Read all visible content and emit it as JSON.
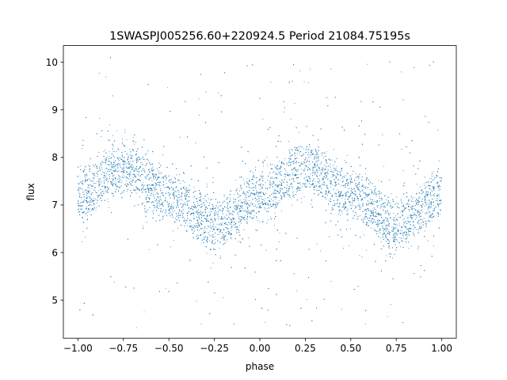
{
  "chart_data": {
    "type": "scatter",
    "title": "1SWASPJ005256.60+220924.5 Period 21084.75195s",
    "xlabel": "phase",
    "ylabel": "flux",
    "xlim": [
      -1.08,
      1.08
    ],
    "ylim": [
      4.2,
      10.35
    ],
    "x_ticks": [
      {
        "value": -1.0,
        "label": "−1.00"
      },
      {
        "value": -0.75,
        "label": "−0.75"
      },
      {
        "value": -0.5,
        "label": "−0.50"
      },
      {
        "value": -0.25,
        "label": "−0.25"
      },
      {
        "value": 0.0,
        "label": "0.00"
      },
      {
        "value": 0.25,
        "label": "0.25"
      },
      {
        "value": 0.5,
        "label": "0.50"
      },
      {
        "value": 0.75,
        "label": "0.75"
      },
      {
        "value": 1.0,
        "label": "1.00"
      }
    ],
    "y_ticks": [
      {
        "value": 5,
        "label": "5"
      },
      {
        "value": 6,
        "label": "6"
      },
      {
        "value": 7,
        "label": "7"
      },
      {
        "value": 8,
        "label": "8"
      },
      {
        "value": 9,
        "label": "9"
      },
      {
        "value": 10,
        "label": "10"
      }
    ],
    "grid": false,
    "legend": "none",
    "marker_color": "#1f77b4",
    "series": [
      {
        "x_range": [
          -1.0,
          1.0
        ],
        "trend": {
          "phase": [
            -1.0,
            -0.75,
            -0.5,
            -0.25,
            0.0,
            0.25,
            0.5,
            0.75,
            1.0
          ],
          "flux": [
            7.2,
            7.8,
            7.2,
            6.6,
            7.2,
            7.8,
            7.2,
            6.6,
            7.2
          ]
        },
        "band_halfwidth": 0.55,
        "outlier_range": [
          4.4,
          10.1
        ]
      }
    ]
  }
}
